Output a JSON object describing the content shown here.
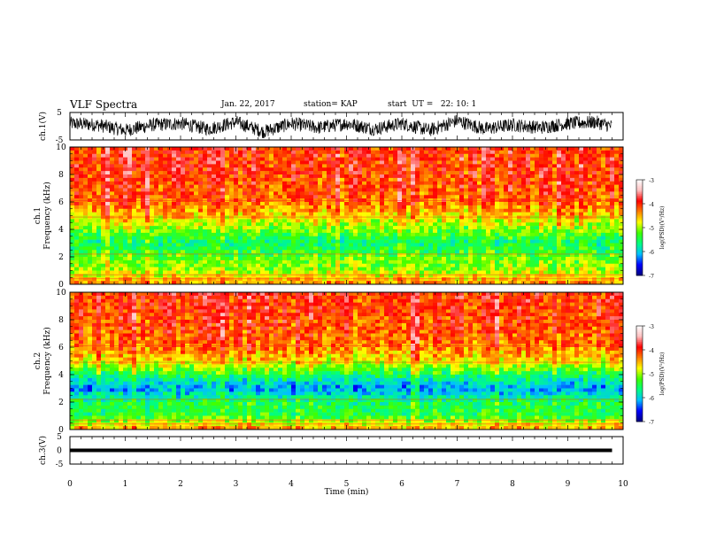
{
  "header": {
    "title": "VLF Spectra",
    "date": "Jan. 22, 2017",
    "station": "station= KAP",
    "start": "start  UT =   22: 10: 1"
  },
  "chart_data": [
    {
      "type": "line",
      "name": "ch1-waveform",
      "ylabel": "ch.1(V)",
      "xlim": [
        0,
        10
      ],
      "ylim": [
        -5,
        5
      ],
      "yticks": [
        "5",
        "-5"
      ],
      "x": [
        0,
        0.5,
        1,
        1.5,
        2,
        2.5,
        3,
        3.5,
        4,
        4.5,
        5,
        5.5,
        6,
        6.5,
        7,
        7.5,
        8,
        8.5,
        9,
        9.5,
        9.8
      ],
      "y": [
        1.0,
        0.5,
        -1.5,
        0.5,
        1.0,
        -1.0,
        1.5,
        -2.0,
        1.0,
        -0.5,
        1.0,
        -1.0,
        1.0,
        -1.5,
        2.0,
        -1.0,
        0.5,
        -0.5,
        1.0,
        1.5,
        0.0
      ],
      "color": "#000000"
    },
    {
      "type": "heatmap",
      "name": "ch1-spectrogram",
      "ylabel": "ch.1\nFrequency (kHz)",
      "xlim": [
        0,
        10
      ],
      "ylim": [
        0,
        10
      ],
      "yticks": [
        "0",
        "2",
        "4",
        "6",
        "8",
        "10"
      ],
      "freq_khz": [
        0,
        1,
        2,
        3,
        4,
        5,
        6,
        7,
        8,
        9,
        10
      ],
      "log_psd": [
        -4.3,
        -5.0,
        -5.2,
        -5.6,
        -5.1,
        -4.6,
        -4.2,
        -4.1,
        -4.05,
        -4.0,
        -4.0
      ],
      "colorbar": {
        "label": "log(PSD)(V²/Hz)",
        "min": -7,
        "max": -3,
        "ticks": [
          "-3",
          "-4",
          "-5",
          "-6",
          "-7"
        ]
      }
    },
    {
      "type": "heatmap",
      "name": "ch2-spectrogram",
      "ylabel": "ch.2\nFrequency (kHz)",
      "xlim": [
        0,
        10
      ],
      "ylim": [
        0,
        10
      ],
      "yticks": [
        "0",
        "2",
        "4",
        "6",
        "8",
        "10"
      ],
      "freq_khz": [
        0,
        1,
        2,
        3,
        4,
        5,
        6,
        7,
        8,
        9,
        10
      ],
      "log_psd": [
        -4.4,
        -5.4,
        -5.5,
        -6.2,
        -5.5,
        -4.7,
        -4.3,
        -4.15,
        -4.1,
        -4.05,
        -4.0
      ],
      "colorbar": {
        "label": "log(PSD)(V²/Hz)",
        "min": -7,
        "max": -3,
        "ticks": [
          "-3",
          "-4",
          "-5",
          "-6",
          "-7"
        ]
      }
    },
    {
      "type": "line",
      "name": "ch3-waveform",
      "ylabel": "ch.3(V)",
      "xlabel": "Time (min)",
      "xlim": [
        0,
        10
      ],
      "ylim": [
        -5,
        5
      ],
      "yticks": [
        "5",
        "0",
        "-5"
      ],
      "xticks": [
        "0",
        "1",
        "2",
        "3",
        "4",
        "5",
        "6",
        "7",
        "8",
        "9",
        "10"
      ],
      "x": [
        0,
        9.8
      ],
      "y": [
        0,
        0
      ],
      "color": "#000000"
    }
  ],
  "colors": {
    "colormap": [
      "#000080",
      "#0000ff",
      "#00c0ff",
      "#00ff80",
      "#40ff00",
      "#ffff00",
      "#ff8000",
      "#ff0000",
      "#ffc0c0",
      "#ffffff"
    ]
  }
}
